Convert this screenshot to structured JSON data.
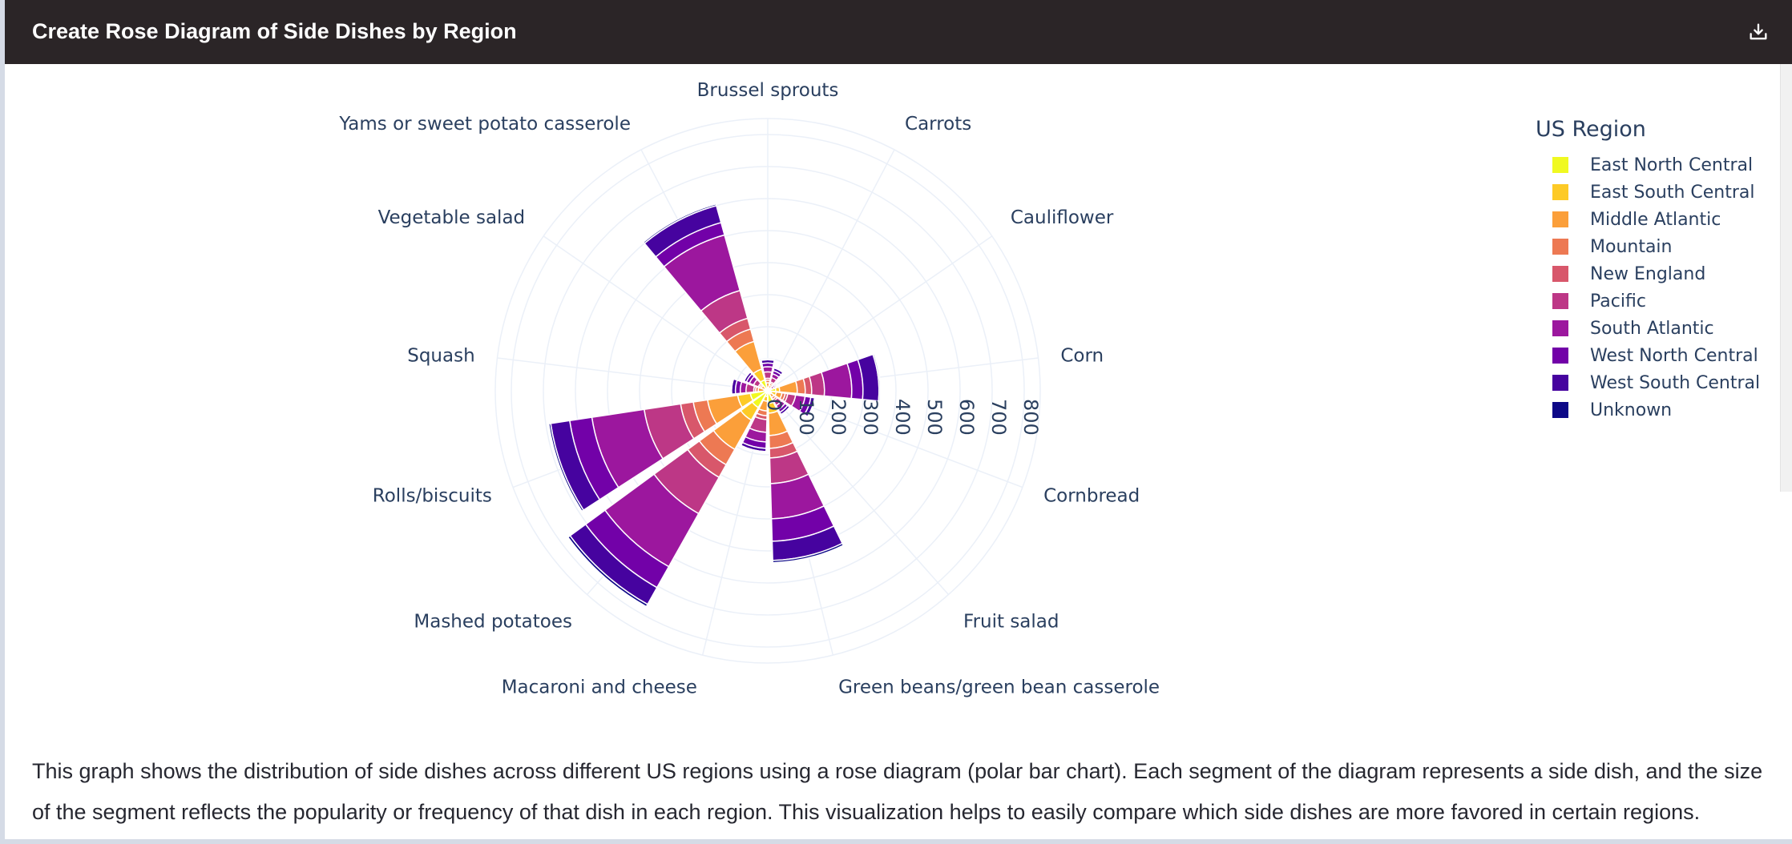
{
  "header": {
    "title": "Create Rose Diagram of Side Dishes by Region",
    "download_icon": "download-icon"
  },
  "description": "This graph shows the distribution of side dishes across different US regions using a rose diagram (polar bar chart). Each segment of the diagram represents a side dish, and the size of the segment reflects the popularity or frequency of that dish in each region. This visualization helps to easily compare which side dishes are more favored in certain regions.",
  "chart_data": {
    "type": "bar",
    "polar": true,
    "barmode": "stack",
    "legend_title": "US Region",
    "legend_position": "top-right",
    "grid": true,
    "radial_range": [
      0,
      850
    ],
    "radial_ticks": [
      0,
      100,
      200,
      300,
      400,
      500,
      600,
      700,
      800
    ],
    "categories": [
      "Brussel sprouts",
      "Carrots",
      "Cauliflower",
      "Corn",
      "Cornbread",
      "Fruit salad",
      "Green beans/green bean casserole",
      "Macaroni and cheese",
      "Mashed potatoes",
      "Rolls/biscuits",
      "Squash",
      "Vegetable salad",
      "Yams or sweet potato casserole"
    ],
    "series": [
      {
        "name": "East North Central",
        "color": "#f0f921",
        "values": [
          8,
          6,
          3,
          25,
          12,
          8,
          40,
          18,
          60,
          55,
          8,
          6,
          35
        ]
      },
      {
        "name": "East South Central",
        "color": "#fdca26",
        "values": [
          3,
          2,
          1,
          12,
          15,
          4,
          30,
          15,
          45,
          40,
          4,
          4,
          35
        ]
      },
      {
        "name": "Middle Atlantic",
        "color": "#fb9f3a",
        "values": [
          14,
          10,
          5,
          55,
          18,
          12,
          70,
          30,
          105,
          95,
          18,
          12,
          90
        ]
      },
      {
        "name": "Mountain",
        "color": "#ed7953",
        "values": [
          8,
          6,
          3,
          25,
          10,
          7,
          40,
          15,
          55,
          45,
          8,
          5,
          40
        ]
      },
      {
        "name": "New England",
        "color": "#d8576b",
        "values": [
          6,
          5,
          2,
          20,
          8,
          6,
          30,
          12,
          45,
          40,
          6,
          5,
          35
        ]
      },
      {
        "name": "Pacific",
        "color": "#bd3786",
        "values": [
          20,
          14,
          7,
          40,
          25,
          16,
          80,
          40,
          130,
          115,
          24,
          16,
          90
        ]
      },
      {
        "name": "South Atlantic",
        "color": "#9c179e",
        "values": [
          16,
          12,
          5,
          85,
          30,
          14,
          110,
          30,
          190,
          165,
          18,
          14,
          180
        ]
      },
      {
        "name": "West North Central",
        "color": "#7201a8",
        "values": [
          12,
          10,
          4,
          35,
          18,
          10,
          70,
          20,
          75,
          70,
          15,
          10,
          40
        ]
      },
      {
        "name": "West South Central",
        "color": "#46039f",
        "values": [
          10,
          9,
          4,
          50,
          12,
          8,
          60,
          10,
          60,
          60,
          12,
          8,
          55
        ]
      },
      {
        "name": "Unknown",
        "color": "#0d0887",
        "values": [
          2,
          1,
          1,
          4,
          2,
          1,
          7,
          2,
          8,
          6,
          2,
          2,
          5
        ]
      }
    ]
  }
}
